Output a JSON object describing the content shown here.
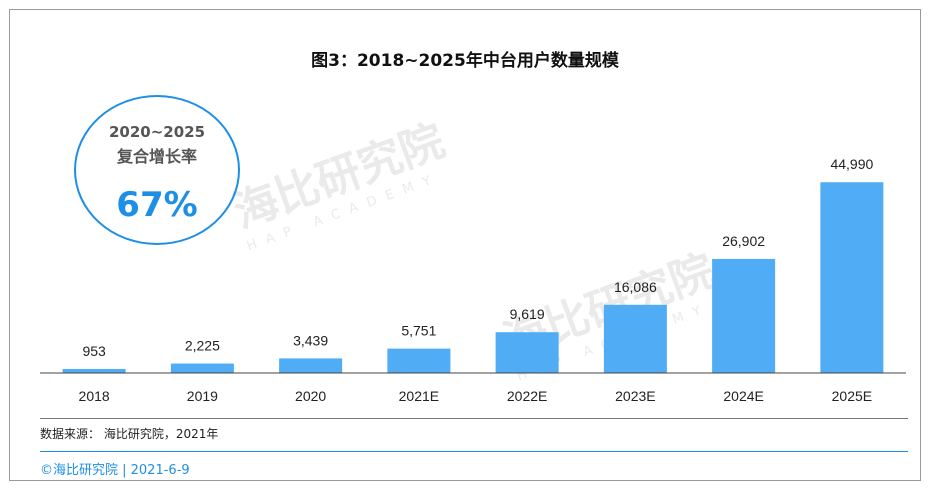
{
  "title": "图3：2018~2025年中台用户数量规模",
  "cagr": {
    "range": "2020~2025",
    "label": "复合增长率",
    "value": "67%"
  },
  "source": "数据来源： 海比研究院，2021年",
  "footer": "©海比研究院  |  2021-6-9",
  "watermark": {
    "main": "海比研究院",
    "sub": "HAP ACADEMY"
  },
  "colors": {
    "bar": "#4facf5",
    "accent": "#1d8fe6",
    "axis": "#444444"
  },
  "chart_data": {
    "type": "bar",
    "categories": [
      "2018",
      "2019",
      "2020",
      "2021E",
      "2022E",
      "2023E",
      "2024E",
      "2025E"
    ],
    "values": [
      953,
      2225,
      3439,
      5751,
      9619,
      16086,
      26902,
      44990
    ],
    "labels": [
      "953",
      "2,225",
      "3,439",
      "5,751",
      "9,619",
      "16,086",
      "26,902",
      "44,990"
    ],
    "title": "图3：2018~2025年中台用户数量规模",
    "xlabel": "",
    "ylabel": "",
    "ylim": [
      0,
      50000
    ],
    "grid": false
  }
}
